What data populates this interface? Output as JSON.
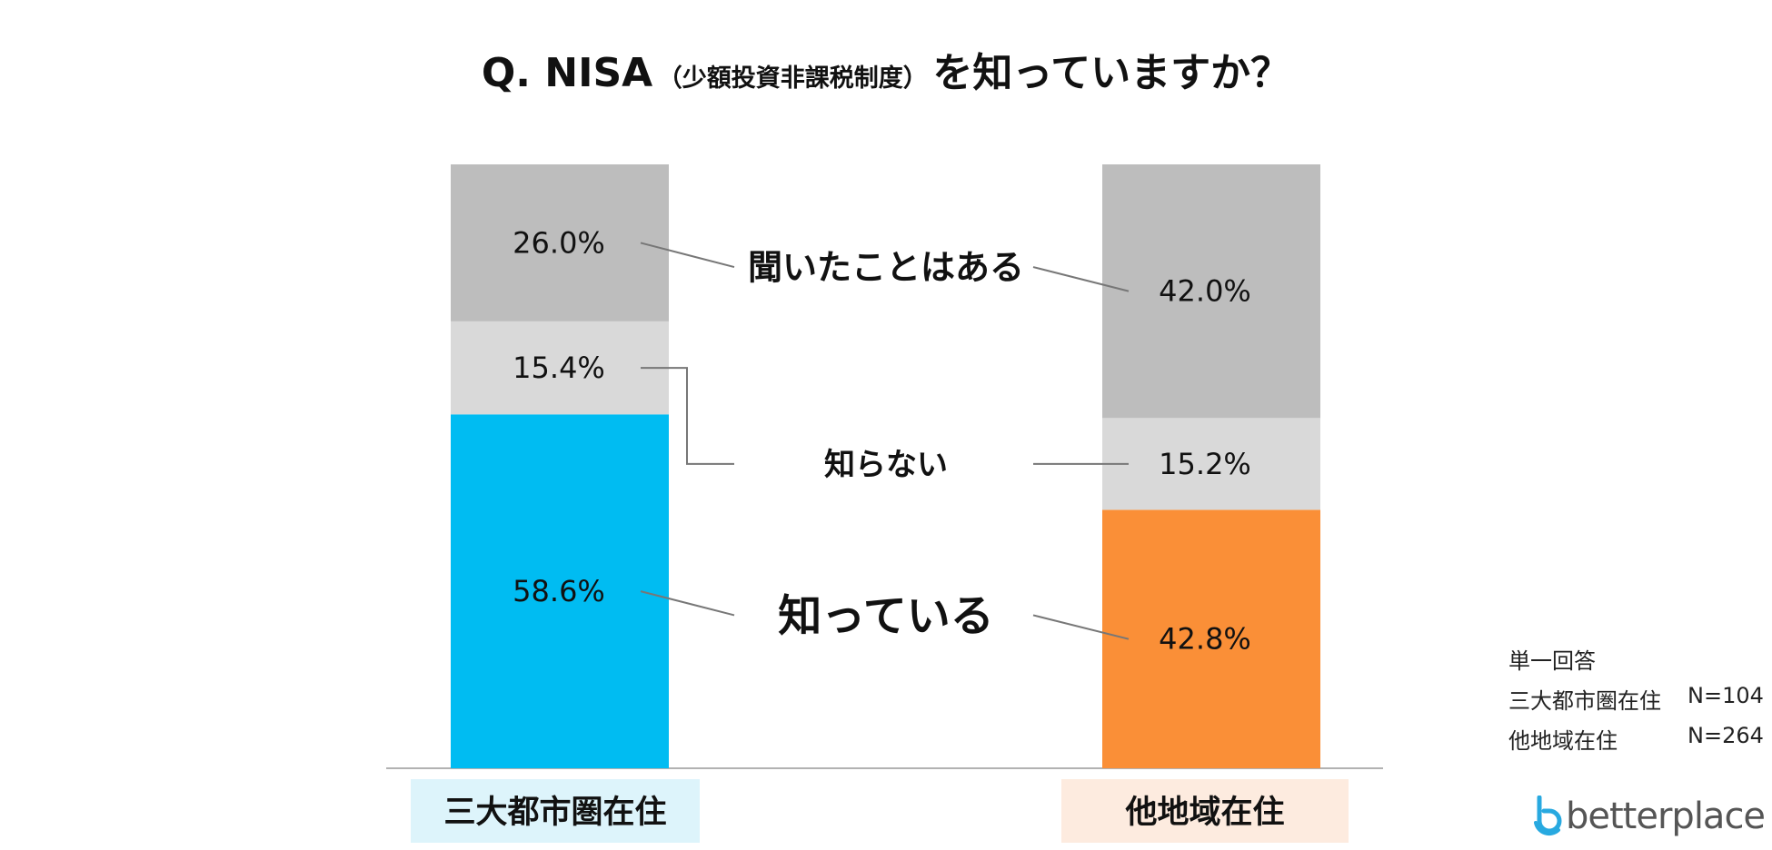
{
  "title": {
    "q": "Q. NISA",
    "paren": "（少額投資非課税制度）",
    "rest": "を知っていますか？"
  },
  "chart_data": {
    "type": "bar",
    "stacked": true,
    "categories": [
      "三大都市圏在住",
      "他地域在住"
    ],
    "series": [
      {
        "name": "知っている",
        "values": [
          58.6,
          42.8
        ],
        "colors": [
          "#00BCF2",
          "#FA8F37"
        ]
      },
      {
        "name": "知らない",
        "values": [
          15.4,
          15.2
        ],
        "color": "#D9D9D9"
      },
      {
        "name": "聞いたことはある",
        "values": [
          26.0,
          42.0
        ],
        "color": "#BDBDBD"
      }
    ],
    "value_labels": [
      [
        "58.6%",
        "15.4%",
        "26.0%"
      ],
      [
        "42.8%",
        "15.2%",
        "42.0%"
      ]
    ],
    "category_label_bg": [
      "#DDF4FB",
      "#FDEBDF"
    ],
    "ylim": [
      0,
      100
    ],
    "grid": false
  },
  "note": {
    "line1": "単一回答",
    "line2_label": "三大都市圏在住",
    "line2_n": "N=104",
    "line3_label": "他地域在住",
    "line3_n": "N=264"
  },
  "logo": {
    "text": "betterplace",
    "icon": "betterplace-logo-icon",
    "color": "#28A9E0"
  }
}
